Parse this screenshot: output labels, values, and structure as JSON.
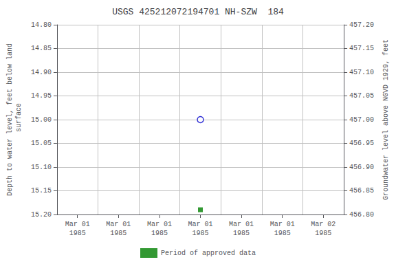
{
  "chart_data": {
    "type": "scatter",
    "title": "USGS 425212072194701 NH-SZW  184",
    "ylabel": "Depth to water level, feet below land\n surface",
    "y2label": "Groundwater level above NGVD 1929, feet",
    "categories": [
      "Mar 01\n1985",
      "Mar 01\n1985",
      "Mar 01\n1985",
      "Mar 01\n1985",
      "Mar 01\n1985",
      "Mar 01\n1985",
      "Mar 02\n1985"
    ],
    "series": [
      {
        "color": "#0000cc",
        "marker": "open_circle",
        "values": [
          null,
          null,
          null,
          15.0,
          null,
          null,
          null
        ]
      },
      {
        "name": "Period of approved data",
        "color": "#008000",
        "marker": "square",
        "values": [
          null,
          null,
          null,
          15.19,
          null,
          null,
          null
        ]
      }
    ],
    "ylim": [
      15.2,
      14.8
    ],
    "yticks": [
      {
        "value": 14.8,
        "label": "14.80"
      },
      14.85,
      {
        "value": 14.9,
        "label": "14.90"
      },
      14.95,
      {
        "value": 15.0,
        "label": "15.00"
      },
      15.05,
      {
        "value": 15.1,
        "label": "15.10"
      },
      15.15,
      {
        "value": 15.2,
        "label": "15.20"
      }
    ],
    "y2lim": [
      456.8,
      457.2
    ],
    "y2ticks": [
      {
        "value": 457.2,
        "label": "457.20"
      },
      457.15,
      {
        "value": 457.1,
        "label": "457.10"
      },
      457.05,
      {
        "value": 457.0,
        "label": "457.00"
      },
      456.95,
      {
        "value": 456.9,
        "label": "456.90"
      },
      456.85,
      {
        "value": 456.8,
        "label": "456.80"
      }
    ],
    "grid": true,
    "legend": "bottom"
  }
}
